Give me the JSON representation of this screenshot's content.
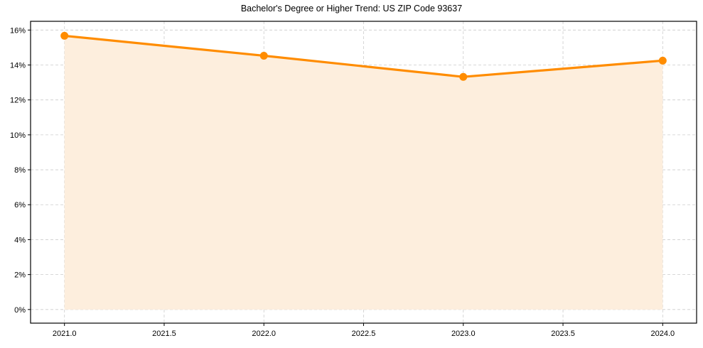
{
  "chart_data": {
    "type": "area",
    "title": "Bachelor's Degree or Higher Trend: US ZIP Code 93637",
    "xlabel": "",
    "ylabel": "",
    "x": [
      2021,
      2022,
      2023,
      2024
    ],
    "series": [
      {
        "name": "Bachelor's Degree or Higher",
        "values": [
          15.67,
          14.53,
          13.32,
          14.25
        ],
        "unit": "%"
      }
    ],
    "xlim": [
      2020.83,
      2024.17
    ],
    "ylim": [
      -0.78,
      16.5
    ],
    "x_ticks": [
      "2021.0",
      "2021.5",
      "2022.0",
      "2022.5",
      "2023.0",
      "2023.5",
      "2024.0"
    ],
    "y_ticks": [
      "0%",
      "2%",
      "4%",
      "6%",
      "8%",
      "10%",
      "12%",
      "14%",
      "16%"
    ],
    "grid": true,
    "legend": null,
    "colors": {
      "line": "#ff8c00",
      "fill": "#fdeedd",
      "grid": "#cccccc"
    }
  }
}
